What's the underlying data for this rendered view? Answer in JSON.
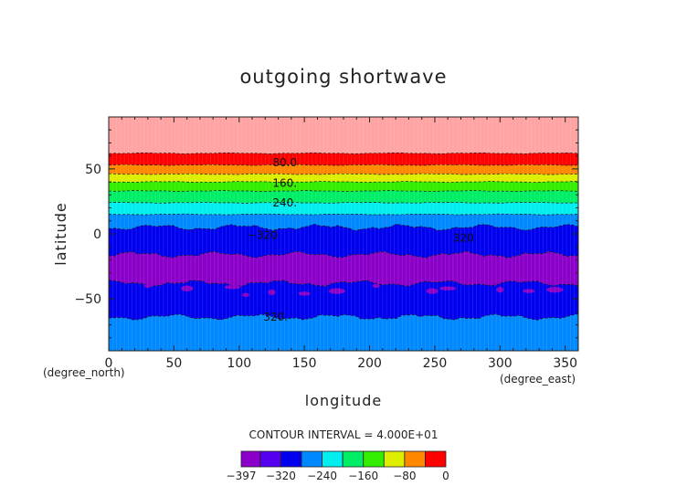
{
  "chart_data": {
    "type": "heatmap",
    "title": "outgoing shortwave",
    "xlabel": "longitude",
    "ylabel": "latitude",
    "xunits": "(degree_east)",
    "yunits": "(degree_north)",
    "xlim": [
      0,
      360
    ],
    "ylim": [
      -90,
      90
    ],
    "xticks": [
      "0",
      "50",
      "100",
      "150",
      "200",
      "250",
      "300",
      "350"
    ],
    "xtick_values": [
      0,
      50,
      100,
      150,
      200,
      250,
      300,
      350
    ],
    "yticks": [
      "50",
      "0",
      "−50"
    ],
    "ytick_values": [
      50,
      0,
      -50
    ],
    "contour_interval_label": "CONTOUR INTERVAL = 4.000E+01",
    "colorbar": {
      "levels": [
        -397,
        -360,
        -320,
        -280,
        -240,
        -200,
        -160,
        -120,
        -80,
        -40,
        0
      ],
      "tick_labels": [
        "−397",
        "−320",
        "−240",
        "−160",
        "−80",
        "0"
      ],
      "tick_values": [
        -397,
        -320,
        -240,
        -160,
        -80,
        0
      ],
      "colors": [
        "#8b00c8",
        "#5500ee",
        "#0000ee",
        "#0088ff",
        "#00eeee",
        "#00ee66",
        "#33ee00",
        "#ddee00",
        "#ff8800",
        "#ff0000",
        "#ffa3a3"
      ]
    },
    "bands": [
      {
        "lat_top": 90,
        "lat_bottom": 62,
        "value": "0 to -40",
        "color": "#ffa3a3"
      },
      {
        "lat_top": 62,
        "lat_bottom": 53,
        "value": "-40 to -80",
        "color": "#ff0000"
      },
      {
        "lat_top": 53,
        "lat_bottom": 46,
        "value": "-80 to -120",
        "color": "#ff8800"
      },
      {
        "lat_top": 46,
        "lat_bottom": 40,
        "value": "-120 to -160",
        "color": "#ddee00"
      },
      {
        "lat_top": 40,
        "lat_bottom": 33,
        "value": "-160 to -200",
        "color": "#33ee00"
      },
      {
        "lat_top": 33,
        "lat_bottom": 24,
        "value": "-200 to -240",
        "color": "#00ee66"
      },
      {
        "lat_top": 24,
        "lat_bottom": 15,
        "value": "-240 to -280",
        "color": "#00eeee"
      },
      {
        "lat_top": 15,
        "lat_bottom": 5,
        "value": "-280 to -320",
        "color": "#0088ff"
      },
      {
        "lat_top": 5,
        "lat_bottom": -16,
        "value": "-320 to -360",
        "color": "#0000ee"
      },
      {
        "lat_top": -16,
        "lat_bottom": -38,
        "value": "-360 to -397",
        "color": "#8b00c8"
      },
      {
        "lat_top": -38,
        "lat_bottom": -64,
        "value": "-320 to -360",
        "color": "#0000ee"
      },
      {
        "lat_top": -64,
        "lat_bottom": -90,
        "value": "-280 to -320",
        "color": "#0088ff"
      }
    ],
    "contour_labels": [
      {
        "text": "80.0",
        "lon": 135,
        "lat": 55
      },
      {
        "text": "160.",
        "lon": 135,
        "lat": 39
      },
      {
        "text": "240.",
        "lon": 135,
        "lat": 24
      },
      {
        "text": "−320",
        "lon": 118,
        "lat": -1
      },
      {
        "text": "320",
        "lon": 272,
        "lat": -3
      },
      {
        "text": "320.",
        "lon": 128,
        "lat": -64
      }
    ],
    "grid": false
  }
}
